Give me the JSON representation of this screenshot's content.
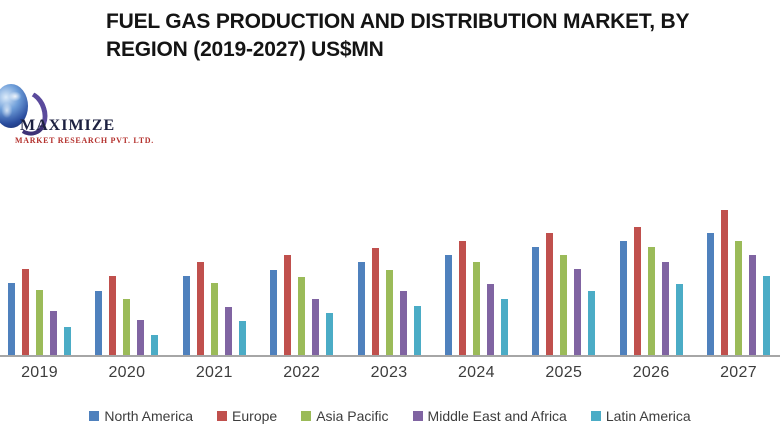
{
  "title": {
    "lines": [
      "FUEL GAS PRODUCTION AND DISTRIBUTION MARKET, BY",
      "REGION (2019-2027) US$MN"
    ]
  },
  "logo": {
    "name": "MAXIMIZE",
    "subtitle": "MARKET RESEARCH PVT. LTD."
  },
  "chart_data": {
    "type": "bar",
    "title": "FUEL GAS PRODUCTION AND DISTRIBUTION MARKET, BY REGION (2019-2027) US$MN",
    "xlabel": "",
    "ylabel": "",
    "categories": [
      "2019",
      "2020",
      "2021",
      "2022",
      "2023",
      "2024",
      "2025",
      "2026",
      "2027"
    ],
    "series": [
      {
        "name": "North America",
        "color": "#4F81BD",
        "values": [
          73,
          65,
          80,
          86,
          94,
          101,
          109,
          115,
          123
        ]
      },
      {
        "name": "Europe",
        "color": "#C0504D",
        "values": [
          87,
          80,
          94,
          101,
          108,
          115,
          123,
          129,
          146
        ]
      },
      {
        "name": "Asia Pacific",
        "color": "#9BBB59",
        "values": [
          66,
          57,
          73,
          79,
          86,
          94,
          101,
          109,
          115
        ]
      },
      {
        "name": "Middle East and Africa",
        "color": "#8064A2",
        "values": [
          45,
          36,
          49,
          57,
          65,
          72,
          87,
          94,
          101
        ]
      },
      {
        "name": "Latin America",
        "color": "#4BACC6",
        "values": [
          29,
          21,
          35,
          43,
          50,
          57,
          65,
          72,
          80
        ]
      }
    ],
    "ylim": [
      0,
      186
    ],
    "y_axis_labeled": false,
    "grid": false,
    "legend_position": "bottom",
    "values_note": "relative units estimated from bar heights; value axis not shown in chart"
  },
  "colors": {
    "axis_line": "#A6A6A6",
    "title_text": "#141414",
    "tick_text": "#3D3D3D",
    "logo_name": "#1D2140",
    "logo_subtitle": "#B4312D"
  }
}
